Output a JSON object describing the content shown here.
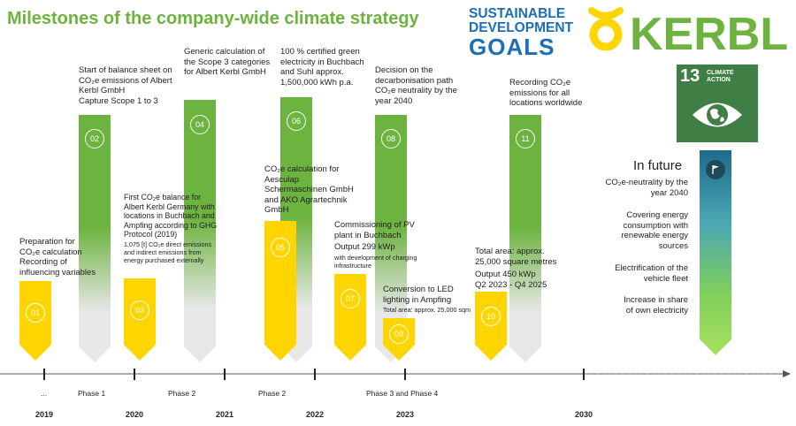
{
  "title": "Milestones of the company-wide climate strategy",
  "sdg_logo": {
    "line1": "SUSTAINABLE",
    "line2": "DEVELOPMENT",
    "line3": "GOALS"
  },
  "kerbl_logo": {
    "text": "KERBL"
  },
  "climate_action": {
    "number": "13",
    "line1": "CLIMATE",
    "line2": "ACTION"
  },
  "colors": {
    "yellow": "#ffd500",
    "green": "#6cb33f",
    "grey": "#e8e8e8",
    "title_green": "#6cb33f",
    "sdg_blue": "#1a6fb7",
    "climate_green": "#3f7e44"
  },
  "milestones": [
    {
      "num": "01",
      "text": [
        "Preparation for",
        "CO₂e calculation",
        "Recording of",
        "influencing variables"
      ]
    },
    {
      "num": "02",
      "text": [
        "Start of balance sheet on",
        "CO₂e emissions of Albert",
        "Kerbl GmbH",
        "Capture Scope 1 to 3"
      ]
    },
    {
      "num": "03",
      "text": [
        "First CO₂e balance for",
        "Albert Kerbl Germany with",
        "locations in Buchbach and",
        "Ampfing according to GHG",
        "Protocol (2019)"
      ],
      "note": [
        "1,075 [t] CO₂e direct emissions",
        "and indirect emissions from",
        "energy purchased externally"
      ]
    },
    {
      "num": "04",
      "text": [
        "Generic calculation of",
        "the Scope 3 categories",
        "for Albert Kerbl GmbH"
      ]
    },
    {
      "num": "05",
      "text": [
        "CO₂e calculation for",
        "Aesculap",
        "Schermaschinen GmbH",
        "and AKO Agrartechnik",
        "GmbH"
      ]
    },
    {
      "num": "06",
      "text": [
        "100 % certified green",
        "electricity in Buchbach",
        "and Suhl approx.",
        "1,500,000 kWh p.a."
      ]
    },
    {
      "num": "07",
      "text": [
        "Commissioning of PV",
        "plant in Buchbach",
        "Output 299 kWp"
      ],
      "note": [
        "with development of charging",
        "infrastructure"
      ]
    },
    {
      "num": "08",
      "text": [
        "Decision on the",
        "decarbonisation path",
        "CO₂e neutrality by the",
        "year 2040"
      ]
    },
    {
      "num": "09",
      "text": [
        "Conversion to LED",
        "lighting in Ampfing"
      ],
      "note": [
        "Total area: approx. 25,000 sqm"
      ]
    },
    {
      "num": "10",
      "text": [
        "Total area: approx.",
        "25,000 square metres",
        "Output 450 kWp",
        "Q2 2023 - Q4 2025"
      ]
    },
    {
      "num": "11",
      "text": [
        "Recording CO₂e",
        "emissions for all",
        "locations worldwide"
      ]
    }
  ],
  "future": {
    "heading": "In future",
    "items": [
      [
        "CO₂e-neutrality by the",
        "year 2040"
      ],
      [
        "Covering energy",
        "consumption with",
        "renewable energy",
        "sources"
      ],
      [
        "Electrification of the",
        "vehicle fleet"
      ],
      [
        "Increase in share",
        "of own electricity"
      ]
    ]
  },
  "timeline": {
    "ellipsis": "...",
    "phases": [
      "Phase 1",
      "Phase 2",
      "Phase 2",
      "Phase 3 and Phase 4"
    ],
    "years": [
      "2019",
      "2020",
      "2021",
      "2022",
      "2023",
      "2030"
    ]
  }
}
